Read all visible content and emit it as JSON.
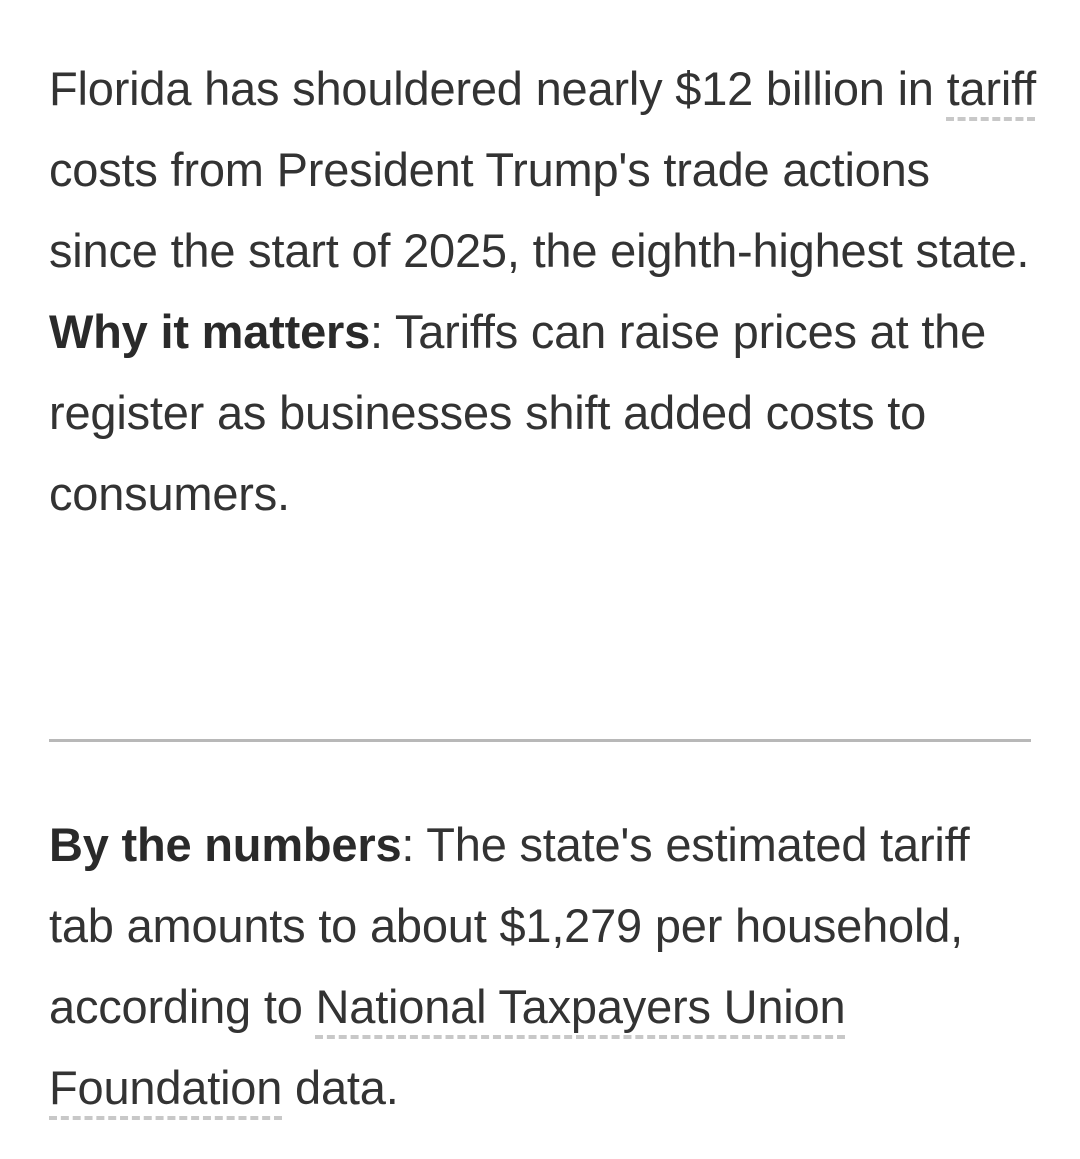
{
  "paragraph1": {
    "text_before": "Florida has shouldered nearly $12 billion in ",
    "link_tariff": "tariff",
    "text_after": " costs from President Trump's trade actions since the start of 2025, the eighth-highest state."
  },
  "paragraph2": {
    "lead": "Why it matters",
    "text": ": Tariffs can raise prices at the register as businesses shift added costs to consumers."
  },
  "paragraph3": {
    "lead": "By the numbers",
    "text_before": ": The state's estimated tariff tab amounts to about $1,279 per household, according to ",
    "link_ntuf": "National Taxpayers Union Foundation",
    "text_after": " data."
  }
}
